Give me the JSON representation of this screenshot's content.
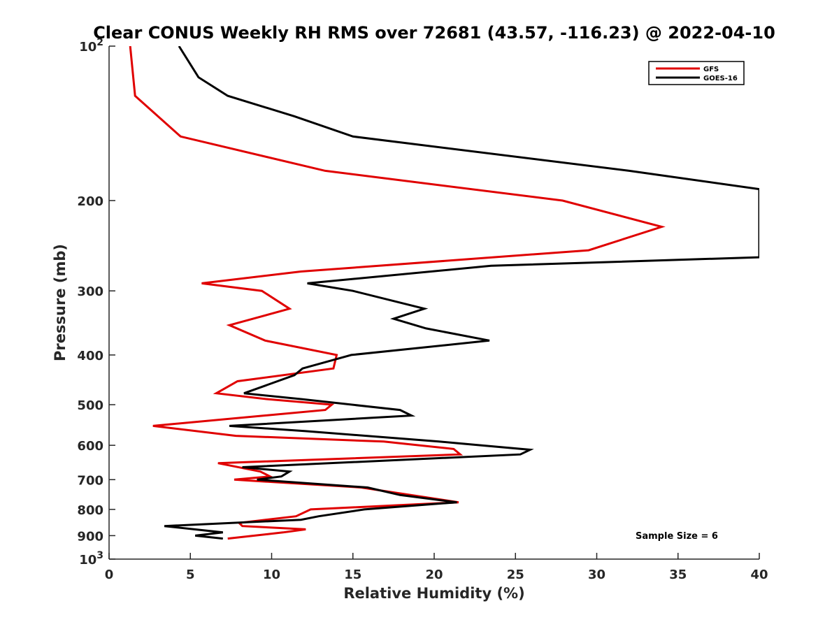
{
  "chart_data": {
    "type": "line",
    "title": "Clear CONUS Weekly RH RMS over 72681 (43.57, -116.23) @ 2022-04-10",
    "xlabel": "Relative Humidity (%)",
    "ylabel": "Pressure (mb)",
    "xlim": [
      0,
      40
    ],
    "ylim": [
      100,
      1000
    ],
    "y_scale": "log",
    "y_reversed": true,
    "x_ticks": [
      "0",
      "5",
      "10",
      "15",
      "20",
      "25",
      "30",
      "35",
      "40"
    ],
    "y_ticks": [
      {
        "value": 100,
        "base": "10",
        "exp": "2"
      },
      {
        "value": 200,
        "label": "200"
      },
      {
        "value": 300,
        "label": "300"
      },
      {
        "value": 400,
        "label": "400"
      },
      {
        "value": 500,
        "label": "500"
      },
      {
        "value": 600,
        "label": "600"
      },
      {
        "value": 700,
        "label": "700"
      },
      {
        "value": 800,
        "label": "800"
      },
      {
        "value": 900,
        "label": "900"
      },
      {
        "value": 1000,
        "base": "10",
        "exp": "3"
      }
    ],
    "grid": false,
    "legend_position": "top-right",
    "annotation": "Sample Size = 6",
    "series": [
      {
        "name": "GFS",
        "color": "#e00000",
        "points": [
          [
            1.3,
            100
          ],
          [
            1.6,
            125
          ],
          [
            4.4,
            150
          ],
          [
            13.3,
            175
          ],
          [
            27.9,
            200
          ],
          [
            34.0,
            225
          ],
          [
            29.5,
            250
          ],
          [
            11.8,
            275
          ],
          [
            5.7,
            290
          ],
          [
            9.4,
            300
          ],
          [
            11.1,
            325
          ],
          [
            7.4,
            350
          ],
          [
            9.6,
            375
          ],
          [
            14.0,
            400
          ],
          [
            13.8,
            425
          ],
          [
            7.9,
            450
          ],
          [
            6.6,
            475
          ],
          [
            9.8,
            488
          ],
          [
            13.7,
            500
          ],
          [
            13.3,
            512
          ],
          [
            2.7,
            550
          ],
          [
            7.8,
            575
          ],
          [
            16.9,
            590
          ],
          [
            21.2,
            610
          ],
          [
            21.6,
            625
          ],
          [
            6.7,
            650
          ],
          [
            9.3,
            675
          ],
          [
            9.9,
            690
          ],
          [
            7.7,
            700
          ],
          [
            15.5,
            725
          ],
          [
            21.5,
            775
          ],
          [
            12.4,
            800
          ],
          [
            11.5,
            825
          ],
          [
            8.0,
            850
          ],
          [
            8.2,
            862
          ],
          [
            12.1,
            875
          ],
          [
            10.7,
            887
          ],
          [
            7.3,
            912
          ]
        ]
      },
      {
        "name": "GOES-16",
        "color": "#000000",
        "points": [
          [
            4.3,
            100
          ],
          [
            5.5,
            115
          ],
          [
            7.3,
            125
          ],
          [
            11.4,
            137
          ],
          [
            15.0,
            150
          ],
          [
            32.0,
            175
          ],
          [
            40.0,
            190
          ],
          [
            40.0,
            258
          ],
          [
            23.5,
            268
          ],
          [
            12.2,
            290
          ],
          [
            15.0,
            300
          ],
          [
            19.4,
            325
          ],
          [
            17.5,
            340
          ],
          [
            19.5,
            355
          ],
          [
            23.4,
            375
          ],
          [
            14.9,
            400
          ],
          [
            11.9,
            425
          ],
          [
            11.4,
            438
          ],
          [
            8.3,
            475
          ],
          [
            11.9,
            488
          ],
          [
            17.9,
            512
          ],
          [
            18.6,
            525
          ],
          [
            7.4,
            550
          ],
          [
            12.1,
            563
          ],
          [
            20.3,
            590
          ],
          [
            25.9,
            612
          ],
          [
            25.3,
            625
          ],
          [
            8.2,
            662
          ],
          [
            11.1,
            675
          ],
          [
            10.6,
            690
          ],
          [
            9.1,
            700
          ],
          [
            15.9,
            725
          ],
          [
            17.9,
            750
          ],
          [
            21.4,
            775
          ],
          [
            15.7,
            800
          ],
          [
            12.9,
            825
          ],
          [
            11.8,
            838
          ],
          [
            3.4,
            862
          ],
          [
            7.0,
            887
          ],
          [
            5.3,
            900
          ],
          [
            7.0,
            912
          ]
        ]
      }
    ]
  }
}
